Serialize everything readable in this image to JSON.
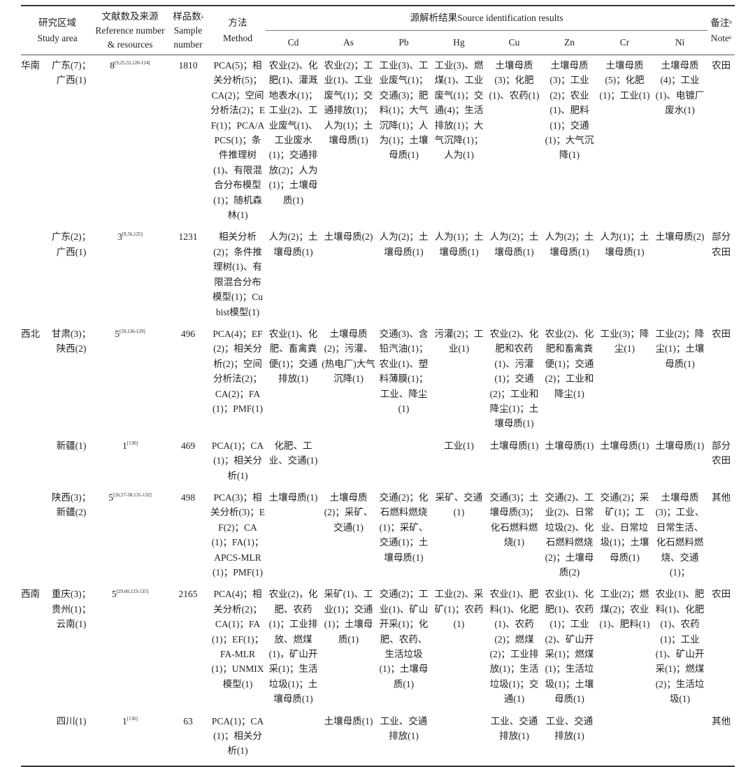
{
  "header": {
    "region_cn": "研究区域",
    "region_en": "Study area",
    "ref_cn": "文献数及来源",
    "ref_en": "Reference number & resources",
    "samples_cn": "样品数",
    "samples_en": "Sample number",
    "samples_sup": "a",
    "method_cn": "方法",
    "method_en": "Method",
    "source_group": "源解析结果Source identification results",
    "note_cn": "备注",
    "note_en": "Note",
    "note_sup": "b",
    "metals": [
      "Cd",
      "As",
      "Pb",
      "Hg",
      "Cu",
      "Zn",
      "Cr",
      "Ni"
    ]
  },
  "rows": [
    {
      "region": "华南",
      "area": "广东(7)；广西(1)",
      "ref_count": "8",
      "ref_sup": "[9,25,55,120-124]",
      "samples": "1810",
      "method": "PCA(5)；相关分析(5)；CA(2)；空间分析法(2)；EF(1)；PCA/APCS(1)；条件推理树(1)、有限混合分布模型(1)；随机森林(1)",
      "sources": [
        "农业(2)、化肥(1)、灌溉地表水(1)；工业(2)、工业废气(1)、工业废水(1)；交通排放(2)；人为(1)；土壤母质(1)",
        "农业(2)；工业(1)、工业废气(1)；交通排放(1)；人为(1)；土壤母质(1)",
        "工业(3)、工业废气(1)；交通(3)；肥料(1)；大气沉降(1)；人为(1)；土壤母质(1)",
        "工业(3)、燃煤(1)、工业废气(1)；交通(4)；生活排放(1)；大气沉降(1)；人为(1)",
        "土壤母质(3)；化肥(1)、农药(1)",
        "土壤母质(3)；工业(2)；农业(1)、肥料(1)；交通(1)；大气沉降(1)",
        "土壤母质(5)；化肥(1)；工业(1)",
        "土壤母质(4)；工业(1)、电镀厂废水(1)"
      ],
      "note": "农田"
    },
    {
      "region": "",
      "area": "广东(2)；广西(1)",
      "ref_count": "3",
      "ref_sup": "[8,56,125]",
      "samples": "1231",
      "method": "相关分析(2)；条件推理树(1)、有限混合分布模型(1)；Cubist模型(1)",
      "sources": [
        "人为(2)；土壤母质(1)",
        "土壤母质(2)",
        "人为(2)；土壤母质(1)",
        "人为(1)；土壤母质(1)",
        "人为(2)；土壤母质(1)",
        "人为(2)；土壤母质(1)",
        "人为(1)；土壤母质(1)",
        "土壤母质(2)"
      ],
      "note": "部分农田"
    },
    {
      "region": "西北",
      "area": "甘肃(3)；陕西(2)",
      "ref_count": "5",
      "ref_sup": "[59,126-129]",
      "samples": "496",
      "method": "PCA(4)；EF(2)；相关分析(2)；空间分析法(2)；CA(2)；FA(1)；PMF(1)",
      "sources": [
        "农业(1)、化肥、畜禽粪便(1)；交通排放(1)",
        "土壤母质(2)；污灌、(热电厂)大气沉降(1)",
        "交通(3)、含铅汽油(1)；农业(1)、塑料薄膜(1)；工业、降尘(1)",
        "污灌(2)；工业(1)",
        "农业(2)、化肥和农药(1)、污灌(1)；交通(2)；工业和降尘(1)；土壤母质(1)",
        "农业(2)、化肥和畜禽粪便(1)；交通(2)；工业和降尘(1)",
        "工业(3)；降尘(1)",
        "工业(2)；降尘(1)；土壤母质(1)"
      ],
      "note": "农田"
    },
    {
      "region": "",
      "area": "新疆(1)",
      "ref_count": "1",
      "ref_sup": "[130]",
      "samples": "469",
      "method": "PCA(1)；CA(1)；相关分析(1)",
      "sources": [
        "化肥、工业、交通(1)",
        "",
        "",
        "工业(1)",
        "土壤母质(1)",
        "土壤母质(1)",
        "土壤母质(1)",
        "土壤母质(1)"
      ],
      "note": "部分农田"
    },
    {
      "region": "",
      "area": "陕西(3)；新疆(2)",
      "ref_count": "5",
      "ref_sup": "[26,57-58,131-132]",
      "samples": "498",
      "method": "PCA(3)；相关分析(3)；EF(2)；CA(1)；FA(1)；APCS-MLR(1)；PMF(1)",
      "sources": [
        "土壤母质(1)",
        "土壤母质(2)；采矿、交通(1)",
        "交通(2)；化石燃料燃烧(1)；采矿、交通(1)；土壤母质(1)",
        "采矿、交通(1)",
        "交通(3)；土壤母质(3)；化石燃料燃烧(1)",
        "交通(2)、工业(2)、日常垃圾(2)、化石燃料燃烧(2)；土壤母质(2)",
        "交通(2)；采矿(1)；工业、日常垃圾(1)；土壤母质(1)",
        "土壤母质(3)；工业、日常生活、化石燃料燃烧、交通(1)；"
      ],
      "note": "其他"
    },
    {
      "region": "西南",
      "area": "重庆(3)；贵州(1)；云南(1)",
      "ref_count": "5",
      "ref_sup": "[29,60,133-135]",
      "samples": "2165",
      "method": "PCA(4)；相关分析(2)；CA(1)；FA(1)；EF(1)；FA-MLR(1)；UNMIX模型(1)",
      "sources": [
        "农业(2)，化肥、农药(1)；工业排放、燃煤(1)，矿山开采(1)；生活垃圾(1)；土壤母质(1)",
        "采矿(1)、工业(1)；交通(1)；土壤母质(1)",
        "交通(2)；工业(1)、矿山开采(1)；化肥、农药、生活垃圾(1)；土壤母质(1)",
        "工业(2)、采矿(1)；农药(1)",
        "农业(1)、肥料(1)、化肥(1)、农药(2)；燃煤(2)；工业排放(1)；生活垃圾(1)；交通(1)",
        "农业(1)、化肥(1)、农药(1)；工业(2)、矿山开采(1)；燃煤(1)；生活垃圾(1)；土壤母质(1)",
        "工业(2)；燃煤(2)；农业(1)、肥料(1)",
        "农业(1)、肥料(1)、化肥(1)、农药(1)；工业(1)、矿山开采(1)；燃煤(2)；生活垃圾(1)"
      ],
      "note": "农田"
    },
    {
      "region": "",
      "area": "四川(1)",
      "ref_count": "1",
      "ref_sup": "[136]",
      "samples": "63",
      "method": "PCA(1)；CA(1)；相关分析(1)",
      "sources": [
        "",
        "土壤母质(1)",
        "工业、交通排放(1)",
        "",
        "工业、交通排放(1)",
        "工业、交通排放(1)",
        "",
        ""
      ],
      "note": "其他"
    }
  ]
}
